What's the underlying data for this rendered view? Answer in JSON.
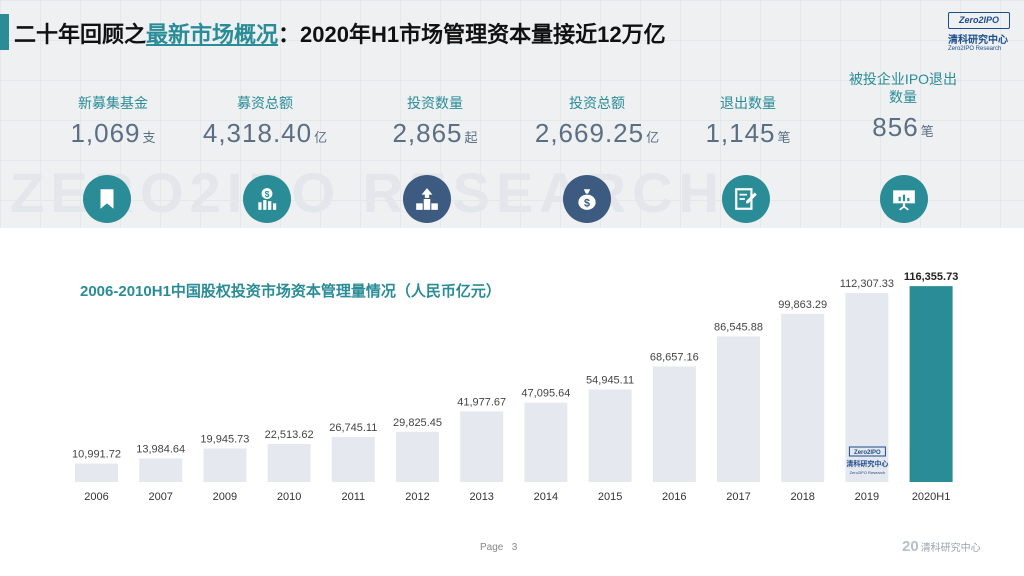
{
  "header": {
    "title_prefix": "二十年回顾之",
    "title_highlight": "最新市场概况",
    "title_suffix": "：2020年H1市场管理资本量接近12万亿"
  },
  "logo": {
    "badge": "Zero2IPO",
    "cn": "清科研究中心",
    "en": "Zero2IPO Research"
  },
  "watermark": "ZERO2IPO RESEARCH",
  "stats": [
    {
      "label": "新募集基金",
      "value": "1,069",
      "unit": "支",
      "icon": "bookmark-icon"
    },
    {
      "label": "募资总额",
      "value": "4,318.40",
      "unit": "亿",
      "icon": "money-chart-icon"
    },
    {
      "label": "投资数量",
      "value": "2,865",
      "unit": "起",
      "icon": "growth-steps-icon"
    },
    {
      "label": "投资总额",
      "value": "2,669.25",
      "unit": "亿",
      "icon": "money-bag-icon"
    },
    {
      "label": "退出数量",
      "value": "1,145",
      "unit": "笔",
      "icon": "document-edit-icon"
    },
    {
      "label": "被投企业IPO退出数量",
      "value": "856",
      "unit": "笔",
      "icon": "presentation-board-icon"
    }
  ],
  "colors": {
    "accent": "#2a8c96",
    "bar": "#e5e8ef",
    "bar_highlight": "#2a8c96",
    "icon_teal": "#2a8c96",
    "icon_navy": "#3d5a80"
  },
  "chart_data": {
    "type": "bar",
    "title": "2006-2010H1中国股权投资市场资本管理量情况（人民币亿元）",
    "categories": [
      "2006",
      "2007",
      "2009",
      "2010",
      "2011",
      "2012",
      "2013",
      "2014",
      "2015",
      "2016",
      "2017",
      "2018",
      "2019",
      "2020H1"
    ],
    "values": [
      10991.72,
      13984.64,
      19945.73,
      22513.62,
      26745.11,
      29825.45,
      41977.67,
      47095.64,
      54945.11,
      68657.16,
      86545.88,
      99863.29,
      112307.33,
      116355.73
    ],
    "value_labels": [
      "10,991.72",
      "13,984.64",
      "19,945.73",
      "22,513.62",
      "26,745.11",
      "29,825.45",
      "41,977.67",
      "47,095.64",
      "54,945.11",
      "68,657.16",
      "86,545.88",
      "99,863.29",
      "112,307.33",
      "116,355.73"
    ],
    "highlight_index": 13,
    "ylim": [
      0,
      120000
    ]
  },
  "bar_badge": {
    "badge": "Zero2IPO",
    "cn": "清科研究中心",
    "en": "Zero2IPO Research"
  },
  "footer": {
    "page_label": "Page",
    "page_number": "3",
    "logo_mark": "20",
    "logo_text": "清科研究中心"
  }
}
